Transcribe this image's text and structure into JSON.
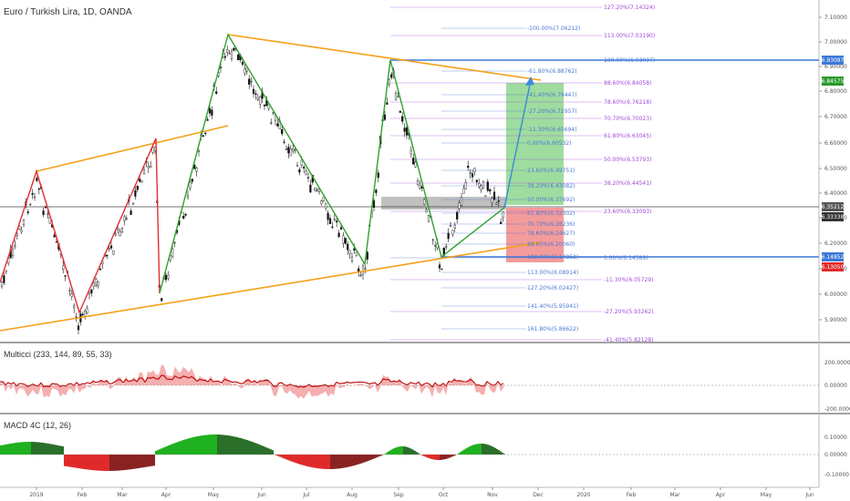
{
  "header": {
    "symbol_title": "Euro / Turkish Lira, 1D, OANDA"
  },
  "colors": {
    "candle": "#111111",
    "zigzag_red": "#e03030",
    "zigzag_green": "#2ea12e",
    "channel_orange": "#f5a017",
    "fib_purple": "#a14ad8",
    "fib_blue": "#4a78d4",
    "hline_blue": "#3c78d8",
    "target_green_zone": "#7fd07f",
    "stop_red_zone": "#f07a7a",
    "macd_green": "#1fb11f",
    "macd_dark_green": "#2a6f2a",
    "macd_red": "#e02a2a",
    "macd_dark_red": "#8a2222",
    "multicci_fill": "#f4a6a6",
    "multicci_line": "#c01010"
  },
  "price_axis": {
    "ticks": [
      "7.10000",
      "7.00000",
      "6.90000",
      "6.80000",
      "6.70000",
      "6.60000",
      "6.50000",
      "6.40000",
      "6.30000",
      "6.20000",
      "6.10000",
      "6.00000",
      "5.90000"
    ],
    "tags": [
      {
        "text": "6.93097",
        "color": "#3c78d8"
      },
      {
        "text": "6.84575",
        "color": "#2a9a2a"
      },
      {
        "text": "6.35212",
        "color": "#555555"
      },
      {
        "text": "6.33338",
        "color": "#333333"
      },
      {
        "text": "6.14852",
        "color": "#3c78d8"
      },
      {
        "text": "6.13050",
        "color": "#e02a2a"
      }
    ]
  },
  "time_axis": {
    "labels": [
      "2019",
      "Feb",
      "Mar",
      "Apr",
      "May",
      "Jun",
      "Jul",
      "Aug",
      "Sep",
      "Oct",
      "Nov",
      "Dec",
      "2020",
      "Feb",
      "Mar",
      "Apr",
      "May",
      "Jun"
    ]
  },
  "fib_right": [
    {
      "text": "127.20%(7.14324)",
      "color": "#a14ad8"
    },
    {
      "text": "113.00%(7.03190)",
      "color": "#a14ad8"
    },
    {
      "text": "100.00%(6.93097)",
      "color": "#4a78d4"
    },
    {
      "text": "88.60%(6.84058)",
      "color": "#a14ad8"
    },
    {
      "text": "78.60%(6.76218)",
      "color": "#a14ad8"
    },
    {
      "text": "70.70%(6.70023)",
      "color": "#a14ad8"
    },
    {
      "text": "61.80%(6.63045)",
      "color": "#a14ad8"
    },
    {
      "text": "50.00%(6.53793)",
      "color": "#a14ad8"
    },
    {
      "text": "38.20%(6.44541)",
      "color": "#a14ad8"
    },
    {
      "text": "23.60%(6.33093)",
      "color": "#a14ad8"
    },
    {
      "text": "0.00%(6.14589)",
      "color": "#4a78d4"
    },
    {
      "text": "-11.30%(6.05729)",
      "color": "#a14ad8"
    },
    {
      "text": "-27.20%(5.93262)",
      "color": "#a14ad8"
    },
    {
      "text": "-41.40%(5.82128)",
      "color": "#a14ad8"
    }
  ],
  "fib_left": [
    {
      "text": "-100.00%(7.06212)",
      "color": "#4a78d4"
    },
    {
      "text": "-61.80%(6.88762)",
      "color": "#4a78d4"
    },
    {
      "text": "-41.40%(6.79447)",
      "color": "#4a78d4"
    },
    {
      "text": "-27.20%(6.72957)",
      "color": "#4a78d4"
    },
    {
      "text": "-11.30%(6.65694)",
      "color": "#4a78d4"
    },
    {
      "text": "0.00%(6.60532)",
      "color": "#4a78d4"
    },
    {
      "text": "23.60%(6.49751)",
      "color": "#4a78d4"
    },
    {
      "text": "38.20%(6.43082)",
      "color": "#4a78d4"
    },
    {
      "text": "50.00%(6.37692)",
      "color": "#4a78d4"
    },
    {
      "text": "61.80%(6.32302)",
      "color": "#4a78d4"
    },
    {
      "text": "70.70%(6.28236)",
      "color": "#4a78d4"
    },
    {
      "text": "78.60%(6.24627)",
      "color": "#4a78d4"
    },
    {
      "text": "88.60%(6.20060)",
      "color": "#4a78d4"
    },
    {
      "text": "100.00%(6.14852)",
      "color": "#4a78d4"
    },
    {
      "text": "113.00%(6.08914)",
      "color": "#4a78d4"
    },
    {
      "text": "127.20%(6.02427)",
      "color": "#4a78d4"
    },
    {
      "text": "141.40%(5.95941)",
      "color": "#4a78d4"
    },
    {
      "text": "161.80%(5.86622)",
      "color": "#4a78d4"
    }
  ],
  "multicci": {
    "title": "Multicci (233, 144, 89, 55, 33)",
    "ticks": [
      "200.00000",
      "0.00000",
      "-200.00000"
    ]
  },
  "macd": {
    "title": "MACD 4C (12, 26)",
    "ticks": [
      "0.10000",
      "0.00000",
      "-0.10000"
    ]
  }
}
